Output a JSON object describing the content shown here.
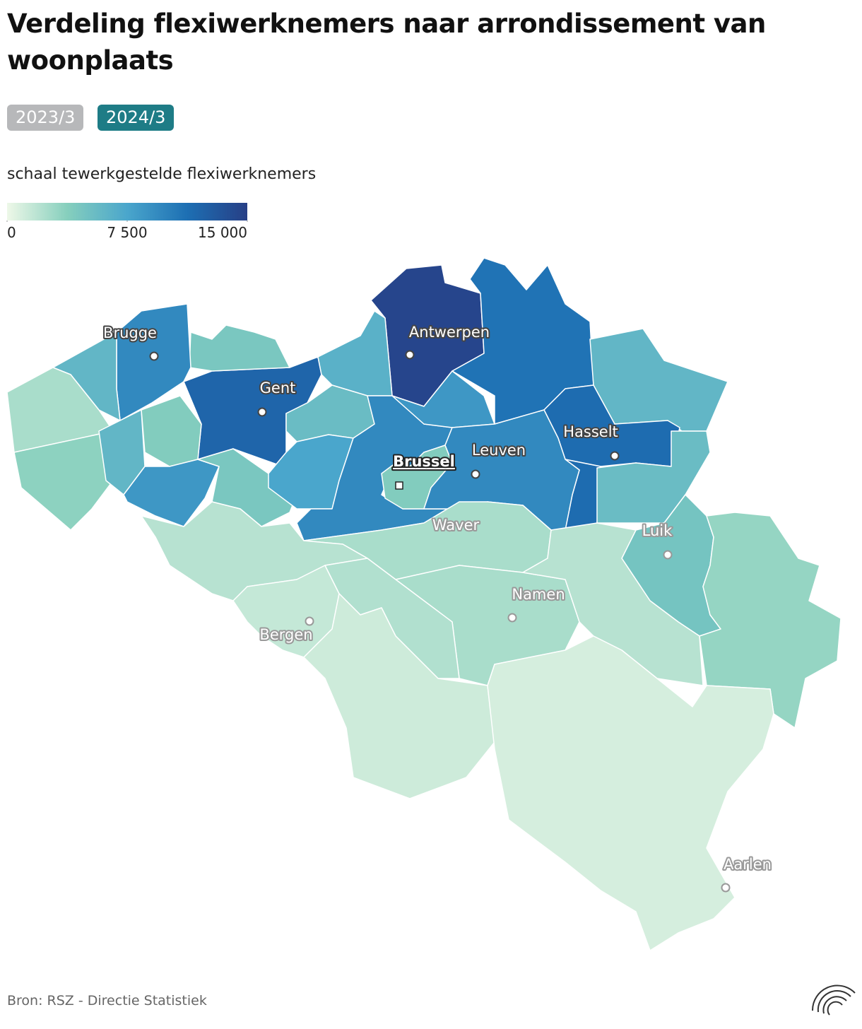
{
  "title": "Verdeling flexiwerknemers naar arrondissement van woonplaats",
  "buttons": [
    "2023/3",
    "2024/3"
  ],
  "source": "Bron: RSZ - Directie Statistiek",
  "chart_data": {
    "type": "choropleth",
    "legend_title": "schaal tewerkgestelde flexiwerknemers",
    "colorscale": [
      "#eef8e8",
      "#86cfbd",
      "#4aa6cc",
      "#1d6fb3",
      "#273f86"
    ],
    "clim": [
      0,
      15000
    ],
    "cticks": [
      0,
      {
        "value": 7500,
        "label": "7 500"
      },
      {
        "value": 15000,
        "label": "15 000"
      }
    ],
    "values": [
      14500,
      11000,
      6000,
      11500,
      5500,
      12000,
      4500,
      9500,
      6000,
      2500,
      3500,
      6000,
      4000,
      8500,
      4500,
      6500,
      5500,
      7500,
      9500,
      8500,
      4000,
      9500,
      2500,
      4800,
      3200,
      2500,
      2000,
      2000,
      1500,
      2200,
      1200,
      900
    ],
    "cities": [
      "Brugge",
      "Gent",
      "Antwerpen",
      "Brussel",
      "Leuven",
      "Hasselt",
      "Waver",
      "Luik",
      "Namen",
      "Bergen",
      "Aarlen"
    ]
  }
}
